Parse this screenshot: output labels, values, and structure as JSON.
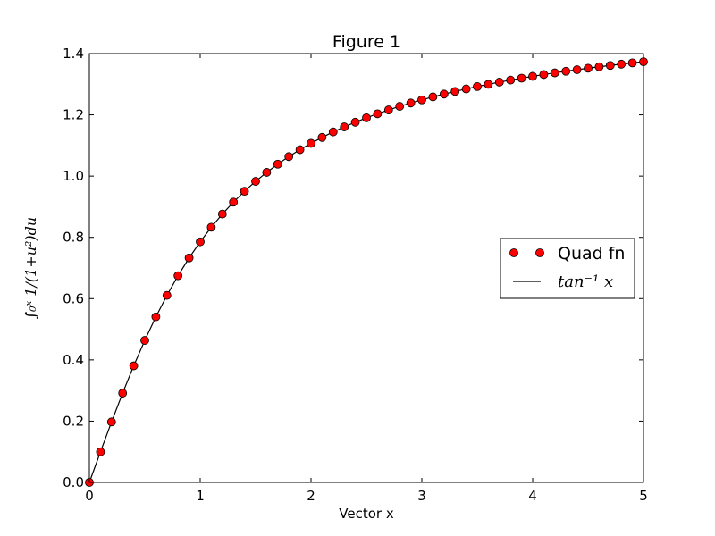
{
  "chart_data": {
    "type": "line",
    "title": "Figure 1",
    "xlabel": "Vector x",
    "ylabel": "∫₀ˣ 1/(1+u²)du",
    "xlim": [
      0,
      5
    ],
    "ylim": [
      0,
      1.4
    ],
    "xticks": [
      0,
      1,
      2,
      3,
      4,
      5
    ],
    "yticks": [
      0.0,
      0.2,
      0.4,
      0.6,
      0.8,
      1.0,
      1.2,
      1.4
    ],
    "xtick_labels": [
      "0",
      "1",
      "2",
      "3",
      "4",
      "5"
    ],
    "ytick_labels": [
      "0.0",
      "0.2",
      "0.4",
      "0.6",
      "0.8",
      "1.0",
      "1.2",
      "1.4"
    ],
    "grid": false,
    "legend_placement": "center-right",
    "series": [
      {
        "name": "Quad fn",
        "style": "markers",
        "color": "#ff0000",
        "edge_color": "#000000",
        "x": [
          0.0,
          0.1,
          0.2,
          0.3,
          0.4,
          0.5,
          0.6,
          0.7,
          0.8,
          0.9,
          1.0,
          1.1,
          1.2,
          1.3,
          1.4,
          1.5,
          1.6,
          1.7,
          1.8,
          1.9,
          2.0,
          2.1,
          2.2,
          2.3,
          2.4,
          2.5,
          2.6,
          2.7,
          2.8,
          2.9,
          3.0,
          3.1,
          3.2,
          3.3,
          3.4,
          3.5,
          3.6,
          3.7,
          3.8,
          3.9,
          4.0,
          4.1,
          4.2,
          4.3,
          4.4,
          4.5,
          4.6,
          4.7,
          4.8,
          4.9,
          5.0
        ],
        "y": [
          0.0,
          0.0997,
          0.1974,
          0.2915,
          0.3805,
          0.4636,
          0.5404,
          0.6107,
          0.6747,
          0.7328,
          0.7854,
          0.833,
          0.8761,
          0.9151,
          0.9505,
          0.9828,
          1.0122,
          1.0391,
          1.0637,
          1.0863,
          1.1071,
          1.1264,
          1.1442,
          1.1607,
          1.176,
          1.1903,
          1.2036,
          1.2161,
          1.2278,
          1.2387,
          1.249,
          1.2587,
          1.2679,
          1.2765,
          1.2847,
          1.2925,
          1.2998,
          1.3068,
          1.3135,
          1.3198,
          1.3258,
          1.3316,
          1.3371,
          1.3423,
          1.3474,
          1.3522,
          1.3569,
          1.3613,
          1.3656,
          1.3697,
          1.3734
        ]
      },
      {
        "name": "tan⁻¹ x",
        "style": "line",
        "color": "#000000",
        "x": [
          0.0,
          0.1,
          0.2,
          0.3,
          0.4,
          0.5,
          0.6,
          0.7,
          0.8,
          0.9,
          1.0,
          1.1,
          1.2,
          1.3,
          1.4,
          1.5,
          1.6,
          1.7,
          1.8,
          1.9,
          2.0,
          2.1,
          2.2,
          2.3,
          2.4,
          2.5,
          2.6,
          2.7,
          2.8,
          2.9,
          3.0,
          3.1,
          3.2,
          3.3,
          3.4,
          3.5,
          3.6,
          3.7,
          3.8,
          3.9,
          4.0,
          4.1,
          4.2,
          4.3,
          4.4,
          4.5,
          4.6,
          4.7,
          4.8,
          4.9,
          5.0
        ],
        "y": [
          0.0,
          0.0997,
          0.1974,
          0.2915,
          0.3805,
          0.4636,
          0.5404,
          0.6107,
          0.6747,
          0.7328,
          0.7854,
          0.833,
          0.8761,
          0.9151,
          0.9505,
          0.9828,
          1.0122,
          1.0391,
          1.0637,
          1.0863,
          1.1071,
          1.1264,
          1.1442,
          1.1607,
          1.176,
          1.1903,
          1.2036,
          1.2161,
          1.2278,
          1.2387,
          1.249,
          1.2587,
          1.2679,
          1.2765,
          1.2847,
          1.2925,
          1.2998,
          1.3068,
          1.3135,
          1.3198,
          1.3258,
          1.3316,
          1.3371,
          1.3423,
          1.3474,
          1.3522,
          1.3569,
          1.3613,
          1.3656,
          1.3697,
          1.3734
        ]
      }
    ]
  }
}
